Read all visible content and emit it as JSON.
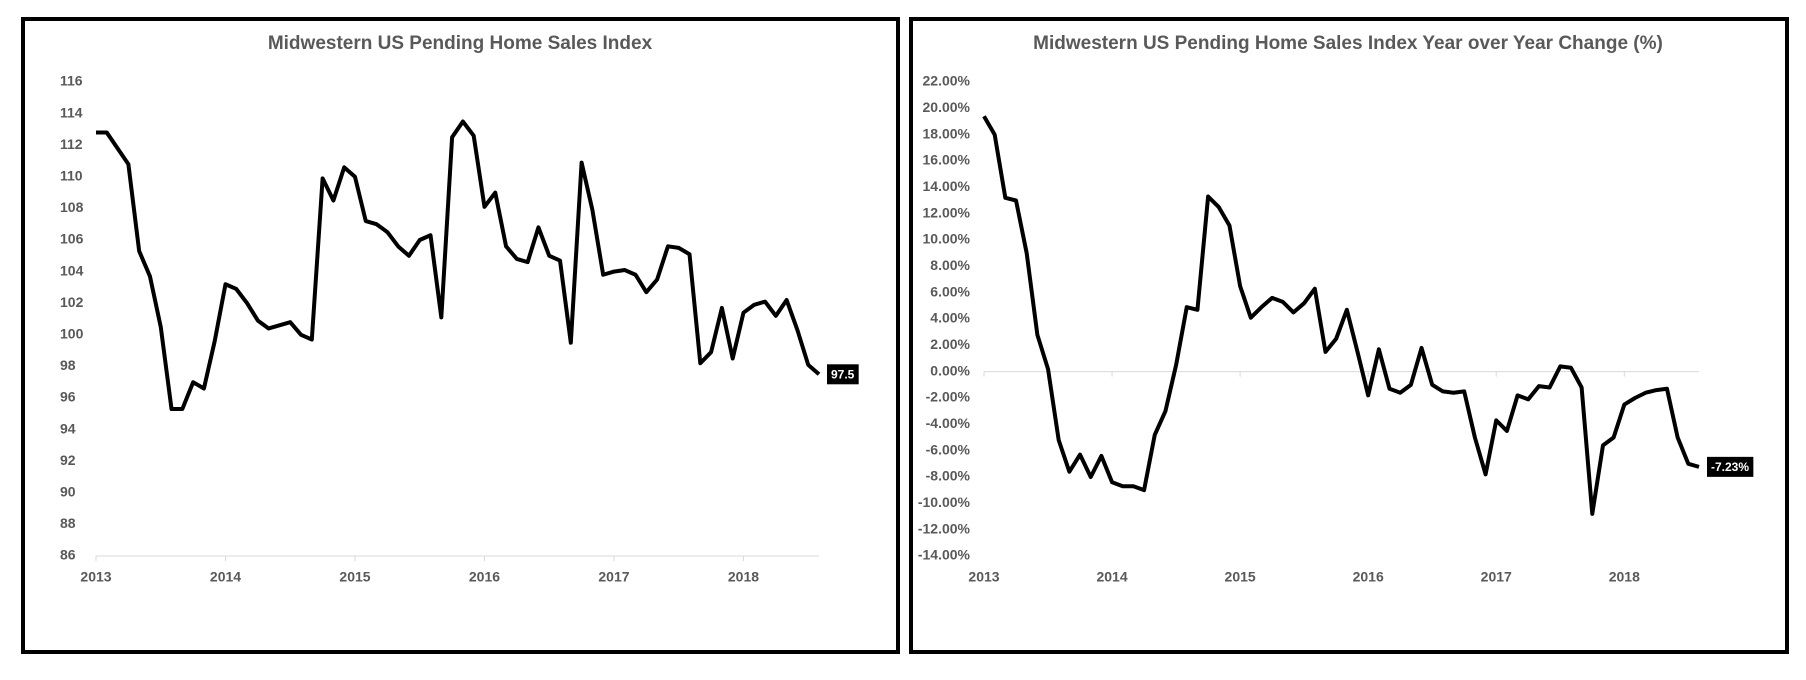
{
  "chart_data": [
    {
      "type": "line",
      "title": "Midwestern US Pending Home Sales Index",
      "color": "#000000",
      "categories": [
        "2013",
        null,
        null,
        null,
        null,
        null,
        null,
        null,
        null,
        null,
        null,
        null,
        "2014",
        null,
        null,
        null,
        null,
        null,
        null,
        null,
        null,
        null,
        null,
        null,
        "2015",
        null,
        null,
        null,
        null,
        null,
        null,
        null,
        null,
        null,
        null,
        null,
        "2016",
        null,
        null,
        null,
        null,
        null,
        null,
        null,
        null,
        null,
        null,
        null,
        "2017",
        null,
        null,
        null,
        null,
        null,
        null,
        null,
        null,
        null,
        null,
        null,
        "2018",
        null,
        null,
        null,
        null,
        null,
        null,
        null
      ],
      "values": [
        112.8,
        112.8,
        111.8,
        110.8,
        105.3,
        103.7,
        100.5,
        95.3,
        95.3,
        97.0,
        96.6,
        99.6,
        103.2,
        102.9,
        102.0,
        100.9,
        100.4,
        100.6,
        100.8,
        100.0,
        99.7,
        109.9,
        108.5,
        110.6,
        110.0,
        107.2,
        107.0,
        106.5,
        105.6,
        105.0,
        106.0,
        106.3,
        101.1,
        112.5,
        113.5,
        112.6,
        108.1,
        109.0,
        105.6,
        104.8,
        104.6,
        106.8,
        105.0,
        104.7,
        99.5,
        110.9,
        107.9,
        103.8,
        104.0,
        104.1,
        103.8,
        102.7,
        103.5,
        105.6,
        105.5,
        105.1,
        98.2,
        98.9,
        101.7,
        98.5,
        101.4,
        101.9,
        102.1,
        101.2,
        102.2,
        100.3,
        98.1,
        97.5
      ],
      "ylim": [
        86,
        116
      ],
      "yticks": [
        86,
        88,
        90,
        92,
        94,
        96,
        98,
        100,
        102,
        104,
        106,
        108,
        110,
        112,
        114,
        116
      ]
    },
    {
      "type": "line",
      "title": "Midwestern US Pending Home Sales Index Year over Year Change (%)",
      "color": "#000000",
      "categories": [
        "2013",
        null,
        null,
        null,
        null,
        null,
        null,
        null,
        null,
        null,
        null,
        null,
        "2014",
        null,
        null,
        null,
        null,
        null,
        null,
        null,
        null,
        null,
        null,
        null,
        "2015",
        null,
        null,
        null,
        null,
        null,
        null,
        null,
        null,
        null,
        null,
        null,
        "2016",
        null,
        null,
        null,
        null,
        null,
        null,
        null,
        null,
        null,
        null,
        null,
        "2017",
        null,
        null,
        null,
        null,
        null,
        null,
        null,
        null,
        null,
        null,
        null,
        "2018",
        null,
        null,
        null,
        null,
        null,
        null,
        null
      ],
      "values": [
        19.4,
        18.0,
        13.2,
        13.0,
        9.0,
        2.8,
        0.2,
        -5.2,
        -7.6,
        -6.3,
        -8.0,
        -6.4,
        -8.4,
        -8.7,
        -8.7,
        -9.0,
        -4.8,
        -3.0,
        0.5,
        4.9,
        4.7,
        13.3,
        12.5,
        11.1,
        6.5,
        4.1,
        4.9,
        5.6,
        5.3,
        4.5,
        5.2,
        6.3,
        1.5,
        2.5,
        4.7,
        1.5,
        -1.8,
        1.7,
        -1.3,
        -1.6,
        -1.0,
        1.8,
        -1.0,
        -1.5,
        -1.6,
        -1.5,
        -5.0,
        -7.8,
        -3.7,
        -4.5,
        -1.8,
        -2.1,
        -1.1,
        -1.2,
        0.4,
        0.3,
        -1.2,
        -10.8,
        -5.6,
        -5.0,
        -2.5,
        -2.0,
        -1.6,
        -1.4,
        -1.3,
        -5.0,
        -7.0,
        -7.23
      ],
      "value_labels": {
        "67": "-7.23%"
      },
      "ylim": [
        -14,
        22
      ],
      "yticks": [
        {
          "value": -14,
          "label": "-14.00%"
        },
        {
          "value": -12,
          "label": "-12.00%"
        },
        {
          "value": -10,
          "label": "-10.00%"
        },
        {
          "value": -8,
          "label": "-8.00%"
        },
        {
          "value": -6,
          "label": "-6.00%"
        },
        {
          "value": -4,
          "label": "-4.00%"
        },
        {
          "value": -2,
          "label": "-2.00%"
        },
        {
          "value": 0,
          "label": "0.00%"
        },
        {
          "value": 2,
          "label": "2.00%"
        },
        {
          "value": 4,
          "label": "4.00%"
        },
        {
          "value": 6,
          "label": "6.00%"
        },
        {
          "value": 8,
          "label": "8.00%"
        },
        {
          "value": 10,
          "label": "10.00%"
        },
        {
          "value": 12,
          "label": "12.00%"
        },
        {
          "value": 14,
          "label": "14.00%"
        },
        {
          "value": 16,
          "label": "16.00%"
        },
        {
          "value": 18,
          "label": "18.00%"
        },
        {
          "value": 20,
          "label": "20.00%"
        },
        {
          "value": 22,
          "label": "22.00%"
        }
      ]
    }
  ]
}
